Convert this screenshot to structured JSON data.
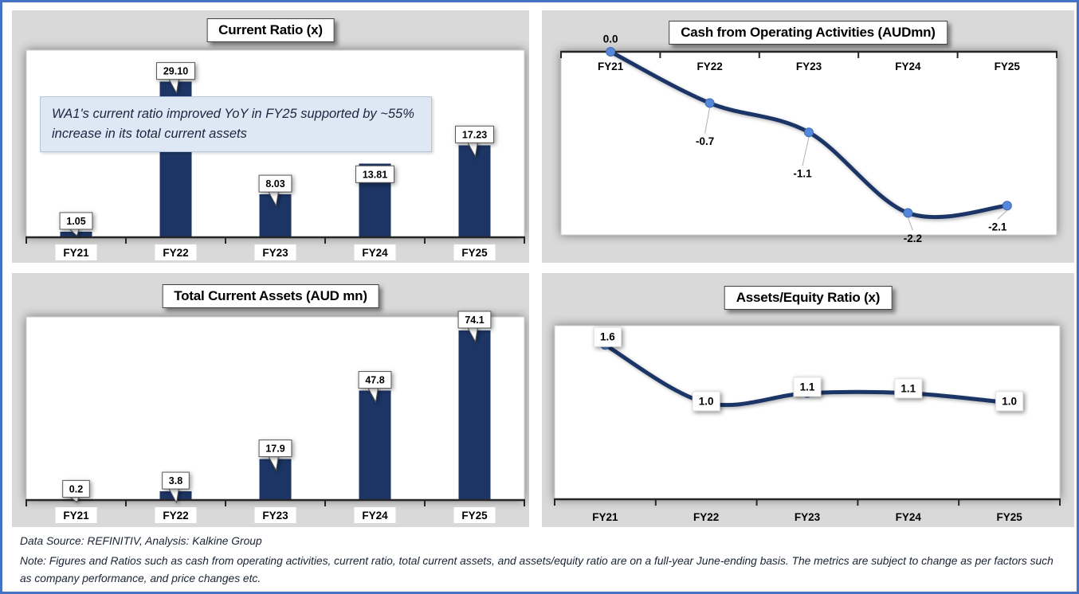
{
  "frame": {
    "border_color": "#4472C4",
    "panel_bg": "#D9D9D9",
    "bar_color": "#1C3564",
    "line_color": "#1B3566",
    "marker_color": "#5588D8",
    "annotation_bg": "#DDE8F4"
  },
  "chart_data": [
    {
      "id": "current-ratio",
      "type": "bar",
      "title": "Current Ratio (x)",
      "categories": [
        "FY21",
        "FY22",
        "FY23",
        "FY24",
        "FY25"
      ],
      "values": [
        1.05,
        29.1,
        8.03,
        13.81,
        17.23
      ],
      "labels": [
        "1.05",
        "29.10",
        "8.03",
        "13.81",
        "17.23"
      ],
      "ylim": [
        0,
        35
      ],
      "axis_position": "bottom",
      "grid": false,
      "legend": false,
      "annotation": "WA1's current ratio improved YoY in FY25 supported by  ~55% increase in its total current assets"
    },
    {
      "id": "cash-from-operating-activities",
      "type": "line",
      "title": "Cash from Operating Activities (AUDmn)",
      "categories": [
        "FY21",
        "FY22",
        "FY23",
        "FY24",
        "FY25"
      ],
      "values": [
        0.0,
        -0.7,
        -1.1,
        -2.2,
        -2.1
      ],
      "labels": [
        "0.0",
        "-0.7",
        "-1.1",
        "-2.2",
        "-2.1"
      ],
      "ylim": [
        0,
        -2.5
      ],
      "axis_position": "top",
      "smooth": true,
      "markers": true,
      "grid": false,
      "legend": false
    },
    {
      "id": "total-current-assets",
      "type": "bar",
      "title": "Total Current Assets (AUD mn)",
      "categories": [
        "FY21",
        "FY22",
        "FY23",
        "FY24",
        "FY25"
      ],
      "values": [
        0.2,
        3.8,
        17.9,
        47.8,
        74.1
      ],
      "labels": [
        "0.2",
        "3.8",
        "17.9",
        "47.8",
        "74.1"
      ],
      "ylim": [
        0,
        80
      ],
      "axis_position": "bottom",
      "grid": false,
      "legend": false
    },
    {
      "id": "assets-equity-ratio",
      "type": "line",
      "title": "Assets/Equity Ratio (x)",
      "categories": [
        "FY21",
        "FY22",
        "FY23",
        "FY24",
        "FY25"
      ],
      "values": [
        1.6,
        1.0,
        1.1,
        1.1,
        1.0
      ],
      "labels": [
        "1.6",
        "1.0",
        "1.1",
        "1.1",
        "1.0"
      ],
      "ylim": [
        0,
        1.8
      ],
      "axis_position": "bottom",
      "smooth": true,
      "markers": true,
      "grid": false,
      "legend": false
    }
  ],
  "footer": {
    "source": "Data Source: REFINITIV, Analysis: Kalkine Group",
    "note": "Note: Figures and Ratios such as cash from operating activities, current ratio, total current assets, and assets/equity ratio are on a full-year June-ending basis. The metrics are subject to change as per factors such as company performance, and price changes etc."
  }
}
